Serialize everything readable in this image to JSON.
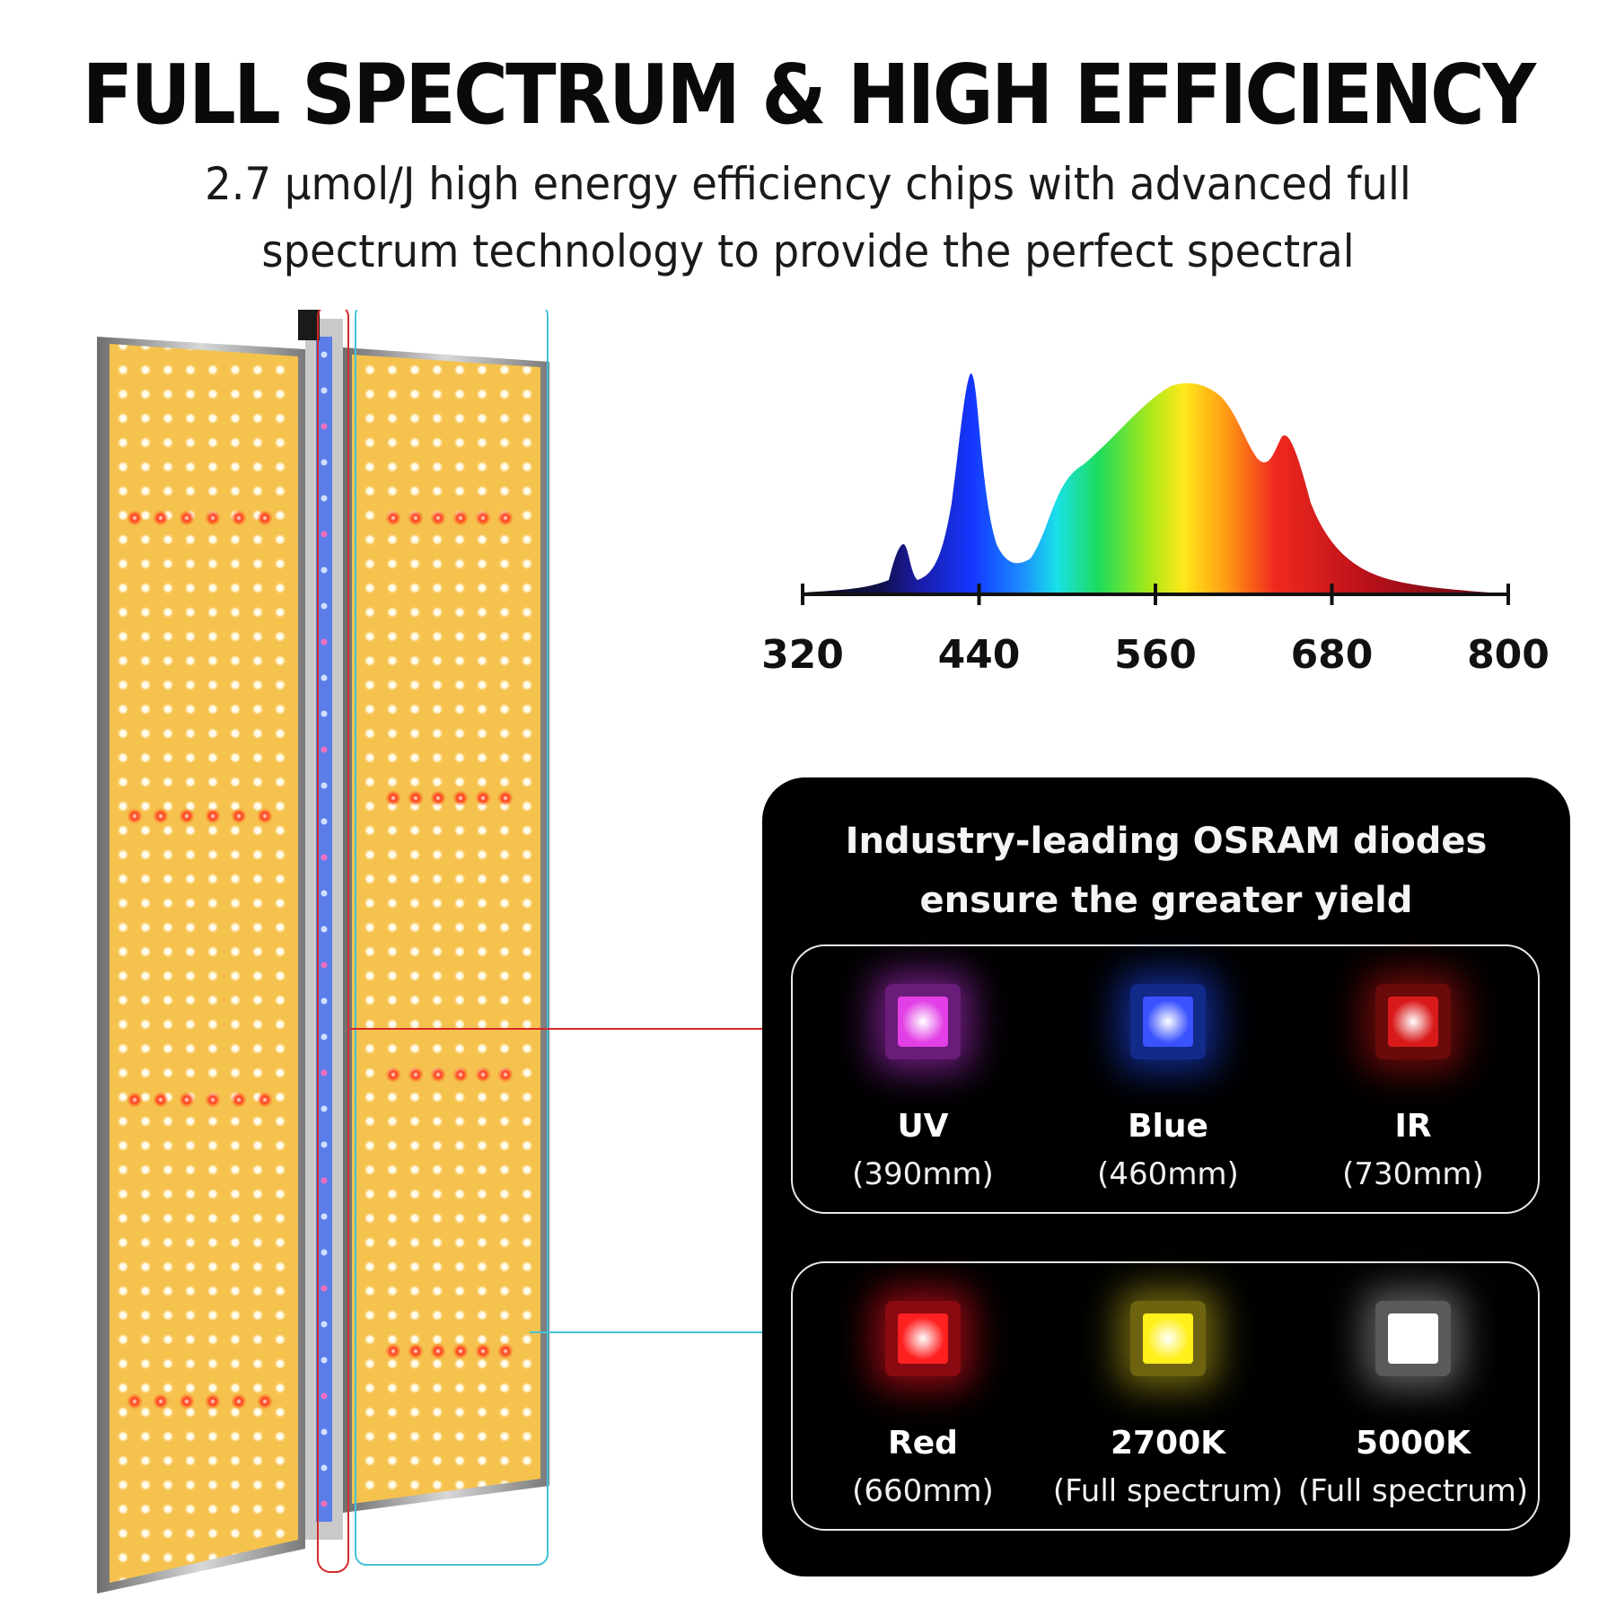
{
  "header": {
    "title": "FULL SPECTRUM & HIGH EFFICIENCY",
    "subtitle_line1": "2.7 μmol/J high energy efficiency chips with advanced full",
    "subtitle_line2": "spectrum technology to provide the perfect spectral"
  },
  "spectrum": {
    "ticks": [
      "320",
      "440",
      "560",
      "680",
      "800"
    ]
  },
  "diode_card": {
    "heading_line1": "Industry-leading OSRAM diodes",
    "heading_line2": "ensure the greater yield",
    "groups": [
      {
        "diodes": [
          {
            "name": "UV",
            "wavelength": "(390mm)",
            "color": "#e23fe6",
            "glow": "#6a1c7a"
          },
          {
            "name": "Blue",
            "wavelength": "(460mm)",
            "color": "#3a52ff",
            "glow": "#122a8a"
          },
          {
            "name": "IR",
            "wavelength": "(730mm)",
            "color": "#d91a1a",
            "glow": "#6a0a0a"
          }
        ]
      },
      {
        "diodes": [
          {
            "name": "Red",
            "wavelength": "(660mm)",
            "color": "#ff2020",
            "glow": "#8a0a12"
          },
          {
            "name": "2700K",
            "wavelength": "(Full spectrum)",
            "color": "#ffef1a",
            "glow": "#6e6410"
          },
          {
            "name": "5000K",
            "wavelength": "(Full spectrum)",
            "color": "#ffffff",
            "glow": "#5a5a5a"
          }
        ]
      }
    ]
  },
  "colors": {
    "led_warm": "#f6c24a",
    "panel_bg": "#f5c65a",
    "callout_red": "#d42a2a",
    "callout_cyan": "#43c3d8",
    "center_strip": "#5c7de8"
  }
}
